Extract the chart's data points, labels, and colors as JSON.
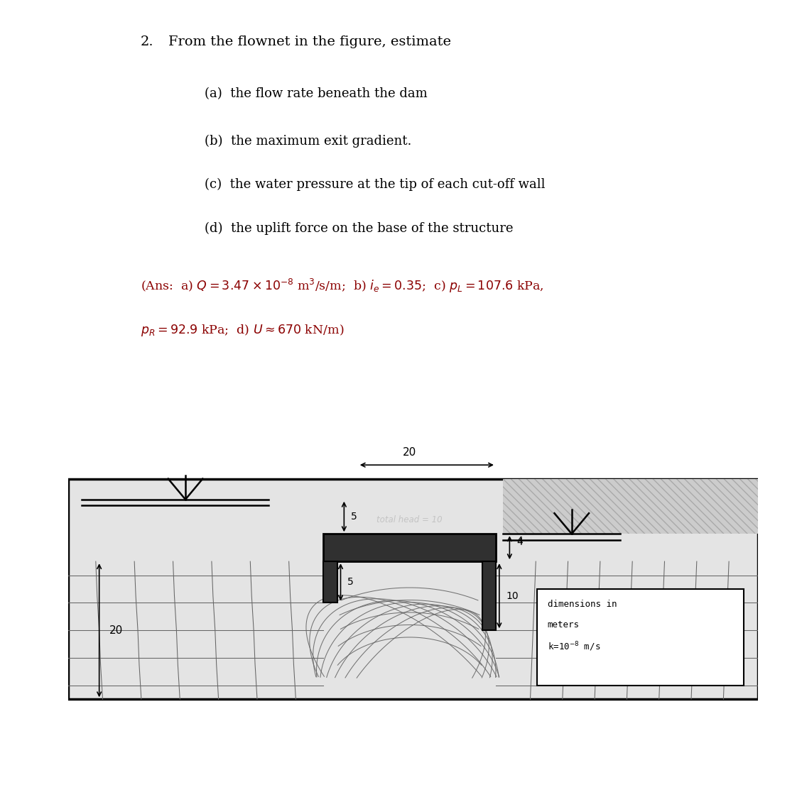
{
  "title_number": "2.",
  "title_text": "From the flownet in the figure, estimate",
  "items": [
    "(a)  the flow rate beneath the dam",
    "(b)  the maximum exit gradient.",
    "(c)  the water pressure at the tip of each cut-off wall",
    "(d)  the uplift force on the base of the structure"
  ],
  "ans_line1": "(Ans:  a) $Q = 3.47 \\times 10^{-8}$ m$^3$/s/m;  b) $i_e = 0.35$;  c) $p_L = 107.6$ kPa,",
  "ans_line2": "$p_R = 92.9$ kPa;  d) $U \\approx 670$ kN/m)",
  "ans_color": "#8B0000",
  "bg_color": "#ffffff",
  "diagram_bg": "#e4e4e4",
  "right_hatch_bg": "#cccccc",
  "dam_color": "#303030",
  "flownet_color": "#666666",
  "line_color": "#000000"
}
